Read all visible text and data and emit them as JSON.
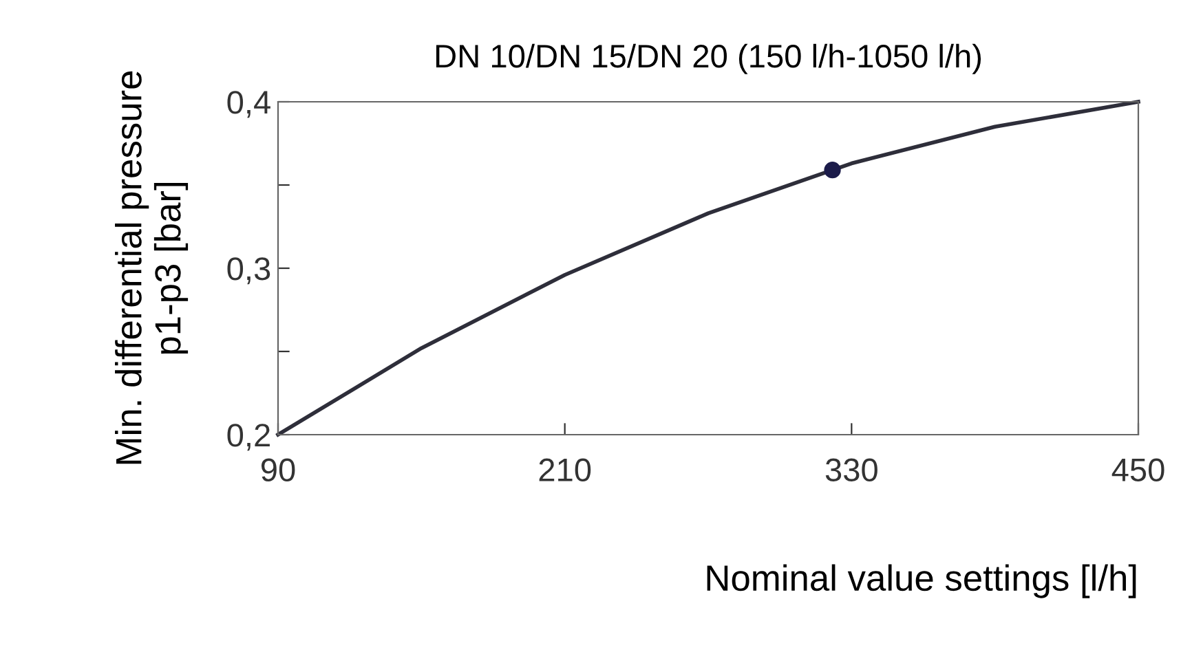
{
  "chart_data": {
    "type": "line",
    "title": "DN 10/DN 15/DN 20 (150 l/h-1050 l/h)",
    "xlabel": "Nominal value settings [l/h]",
    "ylabel": "Min. differential pressure\np1-p3 [bar]",
    "series": [
      {
        "color": "#2e2e3a",
        "x": [
          90,
          150,
          210,
          270,
          330,
          390,
          450
        ],
        "values": [
          0.2,
          0.252,
          0.296,
          0.333,
          0.363,
          0.385,
          0.4
        ]
      },
      {
        "type": "scatter",
        "color": "#1c1c4a",
        "x": [
          322
        ],
        "values": [
          0.359
        ]
      }
    ],
    "xlim": [
      90,
      450
    ],
    "xticks": [
      90,
      210,
      330,
      450
    ],
    "ylim": [
      0.2,
      0.4
    ],
    "yticks": [
      {
        "value": 0.2,
        "label": "0,2"
      },
      {
        "value": 0.25,
        "label": null
      },
      {
        "value": 0.3,
        "label": "0,3"
      },
      {
        "value": 0.35,
        "label": null
      },
      {
        "value": 0.4,
        "label": "0,4"
      }
    ],
    "grid": false,
    "line_style": "solid"
  }
}
